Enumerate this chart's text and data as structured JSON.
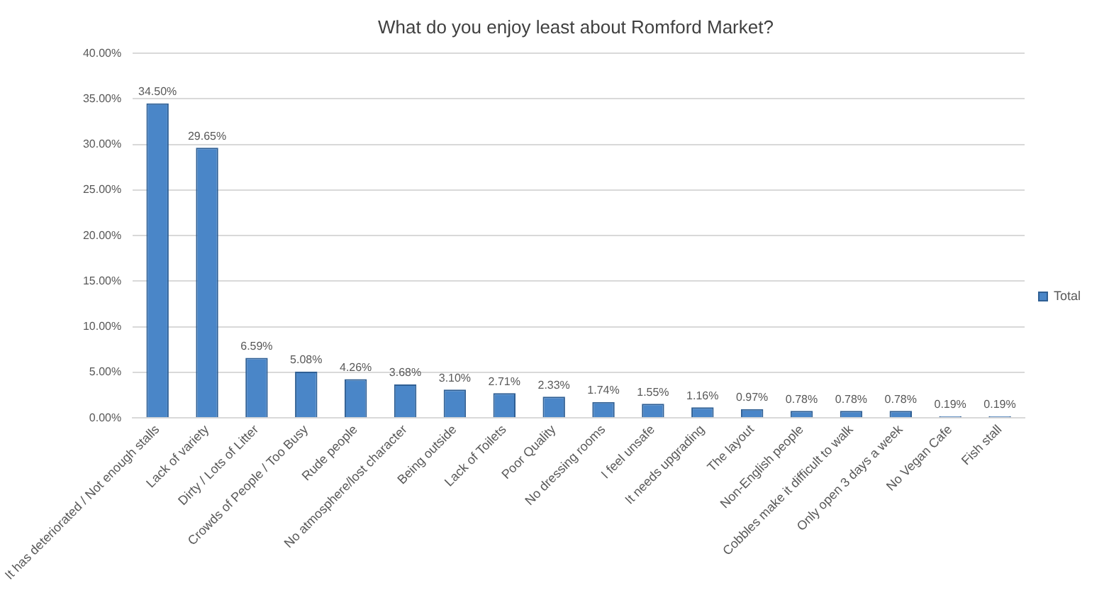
{
  "chart_data": {
    "type": "bar",
    "title": "What do you enjoy least about Romford Market?",
    "categories": [
      "It has deteriorated / Not enough stalls",
      "Lack of variety",
      "Dirty / Lots of Litter",
      "Crowds of People / Too Busy",
      "Rude people",
      "No atmosphere/lost character",
      "Being outside",
      "Lack of Toilets",
      "Poor Quality",
      "No dressing rooms",
      "I feel unsafe",
      "It needs upgrading",
      "The layout",
      "Non-English people",
      "Cobbles make it difficult to walk",
      "Only open 3 days a week",
      "No Vegan Cafe",
      "Fish stall"
    ],
    "series": [
      {
        "name": "Total",
        "color": "#4a86c8",
        "values": [
          34.5,
          29.65,
          6.59,
          5.08,
          4.26,
          3.68,
          3.1,
          2.71,
          2.33,
          1.74,
          1.55,
          1.16,
          0.97,
          0.78,
          0.78,
          0.78,
          0.19,
          0.19
        ],
        "value_labels": [
          "34.50%",
          "29.65%",
          "6.59%",
          "5.08%",
          "4.26%",
          "3.68%",
          "3.10%",
          "2.71%",
          "2.33%",
          "1.74%",
          "1.55%",
          "1.16%",
          "0.97%",
          "0.78%",
          "0.78%",
          "0.78%",
          "0.19%",
          "0.19%"
        ]
      }
    ],
    "ylim": [
      0,
      40
    ],
    "yticks": [
      {
        "value": 0,
        "label": "0.00%"
      },
      {
        "value": 5,
        "label": "5.00%"
      },
      {
        "value": 10,
        "label": "10.00%"
      },
      {
        "value": 15,
        "label": "15.00%"
      },
      {
        "value": 20,
        "label": "20.00%"
      },
      {
        "value": 25,
        "label": "25.00%"
      },
      {
        "value": 30,
        "label": "30.00%"
      },
      {
        "value": 35,
        "label": "35.00%"
      },
      {
        "value": 40,
        "label": "40.00%"
      }
    ],
    "grid": "y",
    "legend": "right"
  }
}
